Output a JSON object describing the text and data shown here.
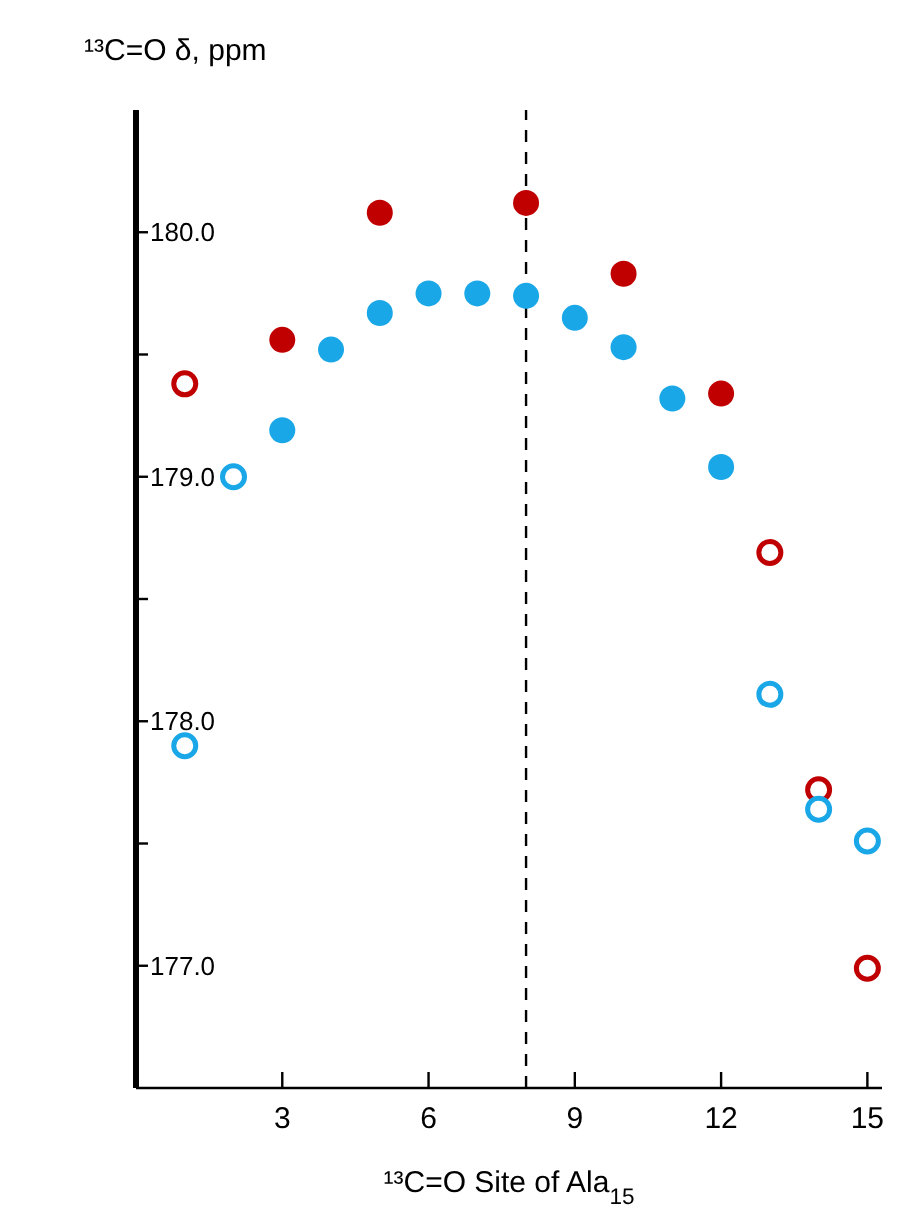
{
  "chart_data": {
    "type": "scatter",
    "ylabel": "¹³C=O  δ, ppm",
    "xlabel": "¹³C=O Site of Ala$_{15}$",
    "xlim": [
      0,
      15.3
    ],
    "xticks": [
      3,
      6,
      9,
      12,
      15
    ],
    "ylim": [
      176.5,
      180.5
    ],
    "yticks": [
      {
        "value": 177,
        "label": "177.0"
      },
      {
        "value": 177.5,
        "label": null
      },
      {
        "value": 178,
        "label": "178.0"
      },
      {
        "value": 178.5,
        "label": null
      },
      {
        "value": 179,
        "label": "179.0"
      },
      {
        "value": 179.5,
        "label": null
      },
      {
        "value": 180,
        "label": "180.0"
      }
    ],
    "marker": "circle",
    "grid": false,
    "ref_lines": [
      {
        "axis": "x",
        "value": 8,
        "line_style": "dashed",
        "color": "#000000"
      }
    ],
    "series": [
      {
        "color": "#c00000",
        "x": [
          3,
          5,
          8,
          10,
          12
        ],
        "values": [
          179.56,
          180.08,
          180.12,
          179.83,
          179.34
        ]
      },
      {
        "color": "#c00000",
        "x": [
          1,
          13,
          14,
          15
        ],
        "values": [
          179.38,
          178.69,
          177.72,
          176.99
        ]
      },
      {
        "color": "#1aa7e8",
        "x": [
          3,
          4,
          5,
          6,
          7,
          8,
          9,
          10,
          11,
          12
        ],
        "values": [
          179.19,
          179.52,
          179.67,
          179.75,
          179.75,
          179.74,
          179.65,
          179.53,
          179.32,
          179.04
        ]
      },
      {
        "color": "#1aa7e8",
        "x": [
          1,
          2,
          13,
          14,
          15
        ],
        "values": [
          177.9,
          179.0,
          178.11,
          177.64,
          177.51
        ]
      }
    ]
  }
}
